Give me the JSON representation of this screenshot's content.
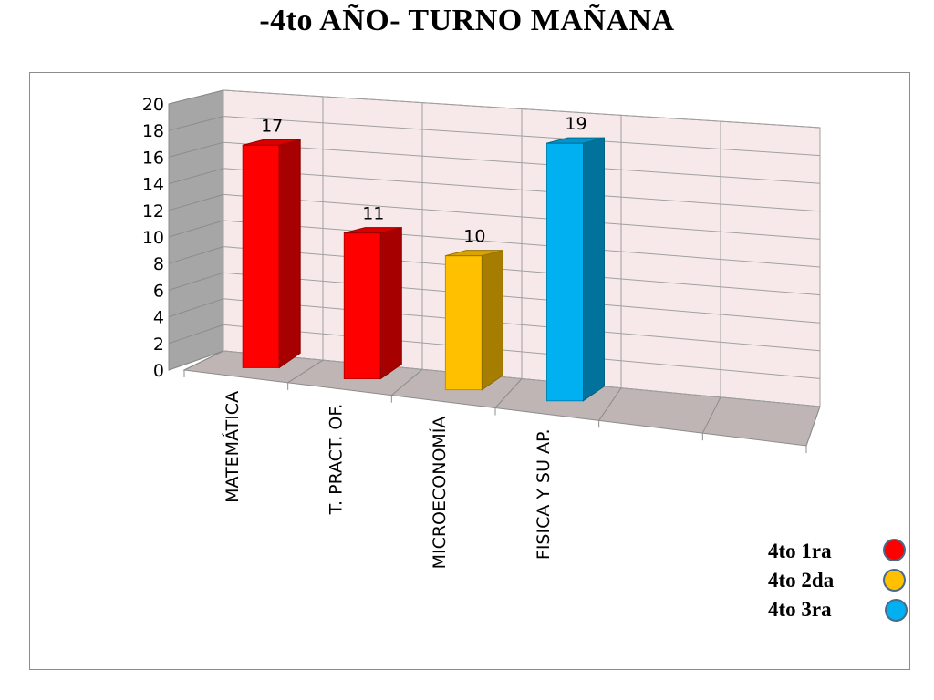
{
  "title": "-4to AÑO- TURNO MAÑANA",
  "chart_data": {
    "type": "bar",
    "title": "-4to AÑO- TURNO MAÑANA",
    "categories": [
      "MATEMÁTICA",
      "T. PRACT. OF.",
      "MICROECONOMÍA",
      "FISICA Y SU AP.",
      "",
      ""
    ],
    "values": [
      17,
      11,
      10,
      19,
      null,
      null
    ],
    "bar_colors": [
      "#ff0000",
      "#ff0000",
      "#ffc000",
      "#00b0f0",
      null,
      null
    ],
    "ylim": [
      0,
      20
    ],
    "yticks": [
      0,
      2,
      4,
      6,
      8,
      10,
      12,
      14,
      16,
      18,
      20
    ],
    "grid": true,
    "style": "3d-column",
    "legend_position": "bottom-right",
    "legend": [
      {
        "label": "4to 1ra",
        "color": "#ff0000"
      },
      {
        "label": "4to 2da",
        "color": "#ffc000"
      },
      {
        "label": "4to 3ra",
        "color": "#00b0f0"
      }
    ]
  }
}
